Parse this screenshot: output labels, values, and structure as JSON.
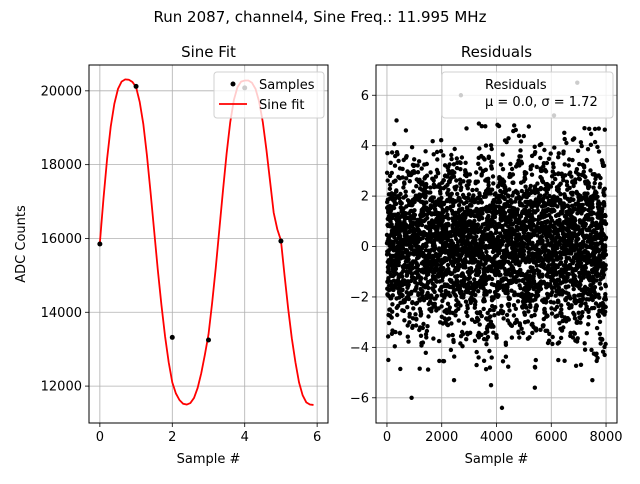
{
  "figure": {
    "suptitle": "Run 2087, channel4, Sine Freq.: 11.995 MHz"
  },
  "colors": {
    "fit_line": "#ff0000",
    "points": "#000000",
    "grid": "#b0b0b0"
  },
  "chart_data": [
    {
      "type": "line",
      "title": "Sine Fit",
      "xlabel": "Sample #",
      "ylabel": "ADC Counts",
      "xlim": [
        -0.3,
        6.3
      ],
      "ylim": [
        11000,
        20700
      ],
      "xticks": [
        0,
        2,
        4,
        6
      ],
      "yticks": [
        12000,
        14000,
        16000,
        18000,
        20000
      ],
      "grid": true,
      "legend": {
        "placement": "top-right",
        "entries": [
          "Samples",
          "Sine fit"
        ]
      },
      "samples": {
        "x": [
          0,
          1,
          2,
          3,
          4,
          5
        ],
        "y": [
          15850,
          20120,
          13320,
          13250,
          20080,
          15930
        ]
      },
      "fit": {
        "x": [
          0,
          0.1,
          0.2,
          0.3,
          0.4,
          0.5,
          0.6,
          0.7,
          0.8,
          0.9,
          1.0,
          1.1,
          1.2,
          1.3,
          1.4,
          1.5,
          1.6,
          1.7,
          1.8,
          1.9,
          2.0,
          2.1,
          2.2,
          2.3,
          2.4,
          2.5,
          2.6,
          2.7,
          2.8,
          2.9,
          3.0,
          3.1,
          3.2,
          3.3,
          3.4,
          3.5,
          3.6,
          3.7,
          3.8,
          3.9,
          4.0,
          4.1,
          4.2,
          4.3,
          4.4,
          4.5,
          4.6,
          4.7,
          4.8,
          4.9,
          5.0,
          5.1,
          5.2,
          5.3,
          5.4,
          5.5,
          5.6,
          5.7,
          5.8,
          5.9
        ],
        "y": [
          15880,
          17080,
          18160,
          19030,
          19650,
          20050,
          20250,
          20310,
          20300,
          20240,
          20100,
          19700,
          19100,
          18250,
          17250,
          16200,
          15150,
          14200,
          13350,
          12650,
          12100,
          11800,
          11620,
          11520,
          11500,
          11540,
          11680,
          11950,
          12350,
          12850,
          13400,
          14250,
          15200,
          16250,
          17300,
          18300,
          19150,
          19750,
          20100,
          20250,
          20280,
          20280,
          20220,
          20050,
          19700,
          19150,
          18400,
          17550,
          16700,
          16250,
          15950,
          15000,
          14100,
          13300,
          12650,
          12100,
          11750,
          11560,
          11500,
          11490
        ]
      }
    },
    {
      "type": "scatter",
      "title": "Residuals",
      "xlabel": "Sample #",
      "ylabel": "",
      "xlim": [
        -400,
        8400
      ],
      "ylim": [
        -7,
        7.2
      ],
      "xticks": [
        0,
        2000,
        4000,
        6000,
        8000
      ],
      "yticks": [
        -6,
        -4,
        -2,
        0,
        2,
        4,
        6
      ],
      "grid": true,
      "legend": {
        "placement": "top-right",
        "entries": [
          "Residuals",
          "μ = 0.0, σ = 1.72"
        ]
      },
      "stats": {
        "mu": 0.0,
        "sigma": 1.72
      },
      "n_samples": 8000,
      "outliers": {
        "x": [
          50,
          900,
          2700,
          4200,
          5400,
          6950,
          7500,
          2450,
          3800,
          7950,
          6100,
          350
        ],
        "y": [
          -4.5,
          -6.0,
          6.0,
          -6.4,
          -5.6,
          6.5,
          -5.3,
          -5.3,
          -5.5,
          -4.3,
          5.2,
          5.0
        ]
      }
    }
  ]
}
